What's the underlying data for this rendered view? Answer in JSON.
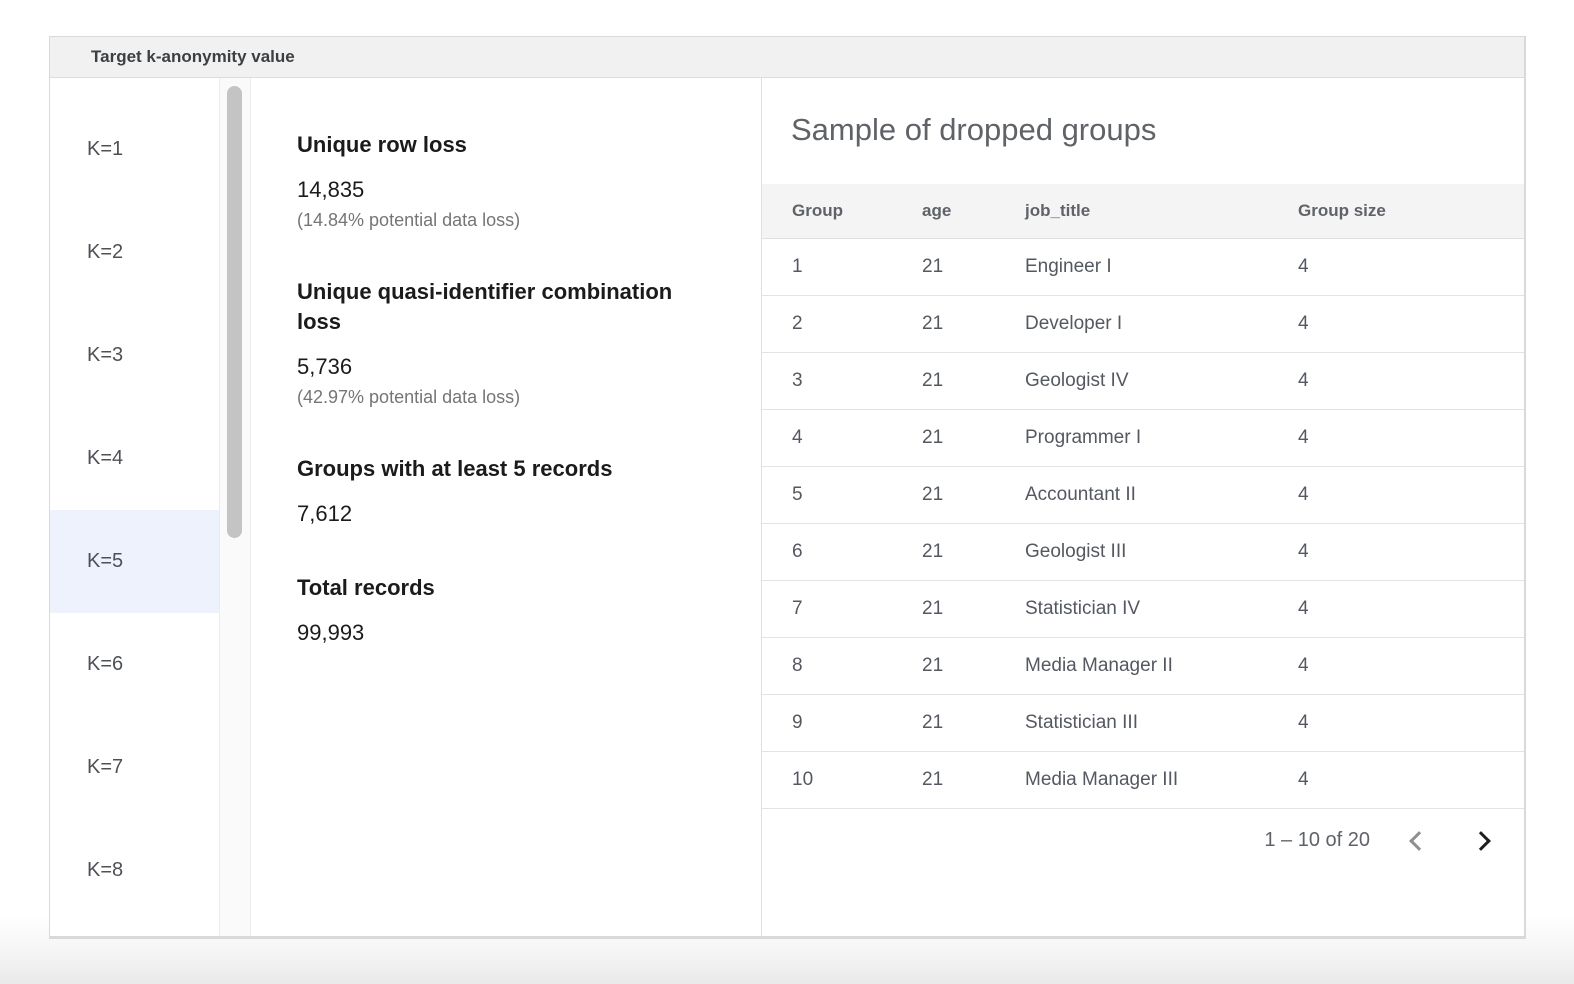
{
  "panel": {
    "title": "Target k-anonymity value"
  },
  "sidebar": {
    "items": [
      {
        "label": "K=1",
        "selected": false
      },
      {
        "label": "K=2",
        "selected": false
      },
      {
        "label": "K=3",
        "selected": false
      },
      {
        "label": "K=4",
        "selected": false
      },
      {
        "label": "K=5",
        "selected": true
      },
      {
        "label": "K=6",
        "selected": false
      },
      {
        "label": "K=7",
        "selected": false
      },
      {
        "label": "K=8",
        "selected": false
      }
    ]
  },
  "stats": [
    {
      "label": "Unique row loss",
      "value": "14,835",
      "note": "(14.84% potential data loss)"
    },
    {
      "label": "Unique quasi-identifier combination loss",
      "value": "5,736",
      "note": "(42.97% potential data loss)"
    },
    {
      "label": "Groups with at least 5 records",
      "value": "7,612",
      "note": ""
    },
    {
      "label": "Total records",
      "value": "99,993",
      "note": ""
    }
  ],
  "dropped_groups": {
    "title": "Sample of dropped groups",
    "columns": [
      "Group",
      "age",
      "job_title",
      "Group size"
    ],
    "rows": [
      [
        "1",
        "21",
        "Engineer I",
        "4"
      ],
      [
        "2",
        "21",
        "Developer I",
        "4"
      ],
      [
        "3",
        "21",
        "Geologist IV",
        "4"
      ],
      [
        "4",
        "21",
        "Programmer I",
        "4"
      ],
      [
        "5",
        "21",
        "Accountant II",
        "4"
      ],
      [
        "6",
        "21",
        "Geologist III",
        "4"
      ],
      [
        "7",
        "21",
        "Statistician IV",
        "4"
      ],
      [
        "8",
        "21",
        "Media Manager II",
        "4"
      ],
      [
        "9",
        "21",
        "Statistician III",
        "4"
      ],
      [
        "10",
        "21",
        "Media Manager III",
        "4"
      ]
    ],
    "pagination": {
      "label": "1 – 10 of 20",
      "prev_enabled": false,
      "next_enabled": true
    }
  },
  "colors": {
    "selected_item_bg": "#edf2fc",
    "titlebar_bg": "#f1f1f1",
    "table_header_bg": "#f4f4f4",
    "panel_border": "#d9d9d9",
    "muted_text": "#757575",
    "prev_chevron": "#8f8f8f",
    "next_chevron": "#1f1f1f"
  }
}
